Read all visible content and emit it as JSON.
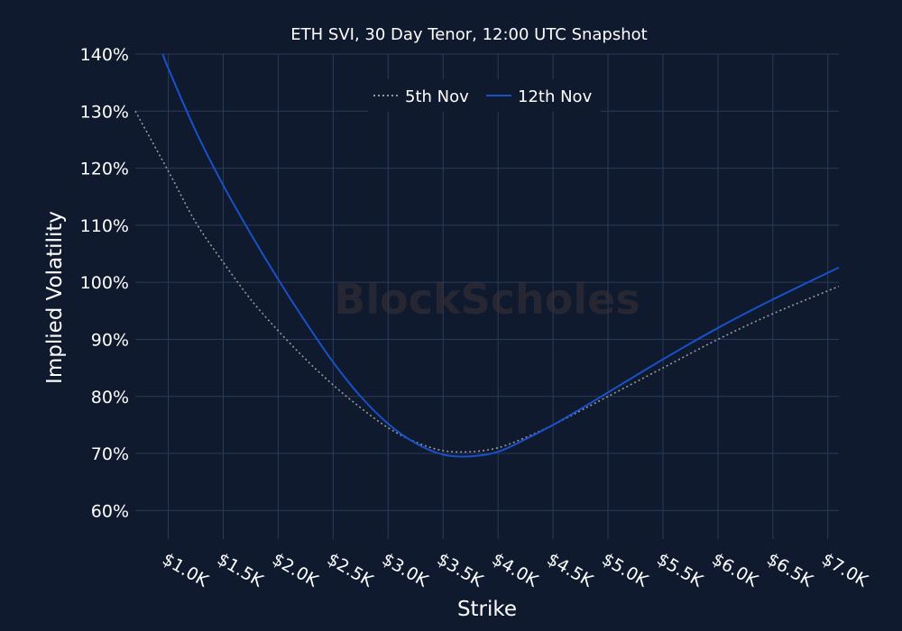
{
  "chart_data": {
    "type": "line",
    "title": "ETH SVI, 30 Day Tenor, 12:00 UTC Snapshot",
    "xlabel": "Strike",
    "ylabel": "Implied Volatility",
    "watermark": "BlockScholes",
    "xlim": [
      700,
      7100
    ],
    "ylim": [
      55,
      140
    ],
    "x_ticks": [
      1000,
      1500,
      2000,
      2500,
      3000,
      3500,
      4000,
      4500,
      5000,
      5500,
      6000,
      6500,
      7000
    ],
    "x_tick_labels": [
      "$1.0K",
      "$1.5K",
      "$2.0K",
      "$2.5K",
      "$3.0K",
      "$3.5K",
      "$4.0K",
      "$4.5K",
      "$5.0K",
      "$5.5K",
      "$6.0K",
      "$6.5K",
      "$7.0K"
    ],
    "y_ticks": [
      60,
      70,
      80,
      90,
      100,
      110,
      120,
      130,
      140
    ],
    "y_tick_labels": [
      "60%",
      "70%",
      "80%",
      "90%",
      "100%",
      "110%",
      "120%",
      "130%",
      "140%"
    ],
    "grid": true,
    "legend_position": "top-center",
    "background_color": "#0f1a2e",
    "grid_color": "#2a3a5c",
    "series": [
      {
        "name": "5th Nov",
        "color": "#9a9a9a",
        "dash": "dotted",
        "x": [
          700,
          1000,
          1250,
          1500,
          1750,
          2000,
          2250,
          2500,
          2750,
          3000,
          3250,
          3500,
          3750,
          4000,
          4250,
          4500,
          4750,
          5000,
          5500,
          6000,
          6500,
          7100
        ],
        "y": [
          130,
          119.5,
          110.5,
          103.5,
          97,
          91.5,
          86.5,
          82,
          78,
          74.5,
          72,
          70.5,
          70.3,
          71,
          72.8,
          75,
          77.5,
          80,
          85,
          90,
          94.5,
          99.3
        ]
      },
      {
        "name": "12th Nov",
        "color": "#1a50c8",
        "dash": "solid",
        "x": [
          950,
          1000,
          1250,
          1500,
          1750,
          2000,
          2250,
          2500,
          2750,
          3000,
          3250,
          3500,
          3750,
          4000,
          4250,
          4500,
          4750,
          5000,
          5500,
          6000,
          6500,
          7100
        ],
        "y": [
          140,
          137.5,
          126.5,
          117,
          108.5,
          100.5,
          93,
          86,
          80,
          75.2,
          71.8,
          69.8,
          69.5,
          70.3,
          72.5,
          75,
          77.8,
          80.7,
          86.5,
          92,
          97,
          102.6
        ]
      }
    ]
  }
}
